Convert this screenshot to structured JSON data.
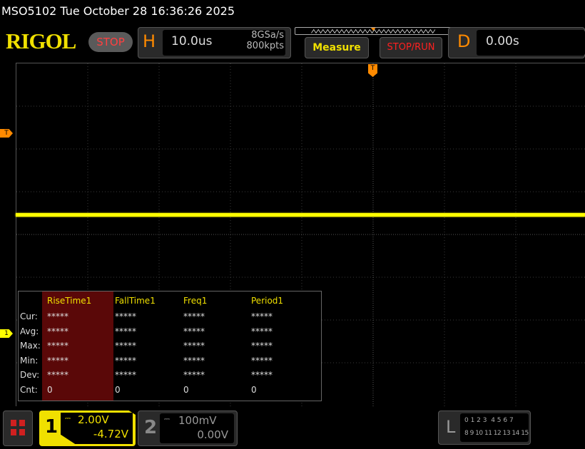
{
  "title": "MSO5102  Tue October 28 16:36:26 2025",
  "logo": "RIGOL",
  "run_state": "STOP",
  "horizontal": {
    "letter": "H",
    "timebase": "10.0us",
    "sample_rate": "8GSa/s",
    "memory": "800kpts"
  },
  "buttons": {
    "measure": "Measure",
    "stop_run": "STOP/RUN"
  },
  "delay": {
    "letter": "D",
    "value": "0.00s"
  },
  "markers": {
    "trigger_level": "T",
    "ch1": "1",
    "trigger_pos": "T"
  },
  "colors": {
    "ch1": "#ffff00",
    "trigger": "#ff8a00",
    "accent": "#f0e000"
  },
  "measure_table": {
    "headers": [
      "RiseTime1",
      "FallTime1",
      "Freq1",
      "Period1"
    ],
    "rows": [
      {
        "label": "Cur:",
        "values": [
          "*****",
          "*****",
          "*****",
          "*****"
        ]
      },
      {
        "label": "Avg:",
        "values": [
          "*****",
          "*****",
          "*****",
          "*****"
        ]
      },
      {
        "label": "Max:",
        "values": [
          "*****",
          "*****",
          "*****",
          "*****"
        ]
      },
      {
        "label": "Min:",
        "values": [
          "*****",
          "*****",
          "*****",
          "*****"
        ]
      },
      {
        "label": "Dev:",
        "values": [
          "*****",
          "*****",
          "*****",
          "*****"
        ]
      },
      {
        "label": "Cnt:",
        "values": [
          "0",
          "0",
          "0",
          "0"
        ]
      }
    ]
  },
  "ch1": {
    "num": "1",
    "scale": "2.00V",
    "offset": "-4.72V"
  },
  "ch2": {
    "num": "2",
    "scale": "100mV",
    "offset": "0.00V"
  },
  "logic": {
    "letter": "L",
    "row1": "0 1 2 3  4 5 6 7",
    "row2": "8 9 10 11 12 13 14 15"
  }
}
